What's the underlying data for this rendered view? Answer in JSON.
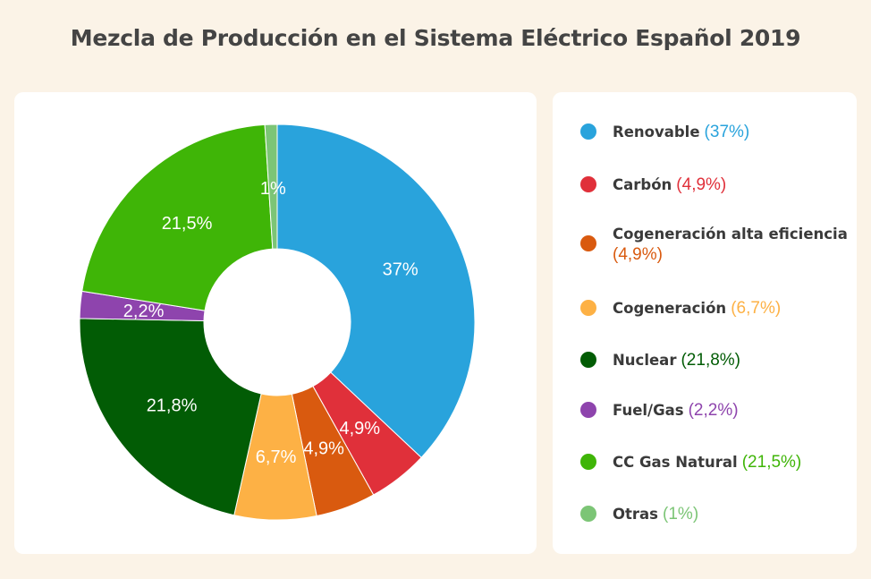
{
  "title": "Mezcla de Producción en el Sistema Eléctrico Español 2019",
  "chart_data": {
    "type": "pie",
    "donut": true,
    "categories": [
      "Renovable",
      "Carbón",
      "Cogeneración alta eficiencia",
      "Cogeneración",
      "Nuclear",
      "Fuel/Gas",
      "CC Gas Natural",
      "Otras"
    ],
    "values": [
      37,
      4.9,
      4.9,
      6.7,
      21.8,
      2.2,
      21.5,
      1
    ],
    "labels": [
      "37%",
      "4,9%",
      "4,9%",
      "6,7%",
      "21,8%",
      "2,2%",
      "21,5%",
      "1%"
    ],
    "colors": [
      "#29a3dc",
      "#e0303a",
      "#d95a0f",
      "#fdb145",
      "#025c05",
      "#8e44ad",
      "#3fb507",
      "#7cc576"
    ],
    "legend_position": "right"
  },
  "legend": [
    {
      "name": "Renovable",
      "pct": "(37%)",
      "color": "#29a3dc"
    },
    {
      "name": "Carbón",
      "pct": "(4,9%)",
      "color": "#e0303a"
    },
    {
      "name": "Cogeneración alta eficiencia",
      "pct": "(4,9%)",
      "color": "#d95a0f"
    },
    {
      "name": "Cogeneración",
      "pct": "(6,7%)",
      "color": "#fdb145"
    },
    {
      "name": "Nuclear",
      "pct": "(21,8%)",
      "color": "#025c05"
    },
    {
      "name": "Fuel/Gas",
      "pct": "(2,2%)",
      "color": "#8e44ad"
    },
    {
      "name": "CC Gas Natural",
      "pct": "(21,5%)",
      "color": "#3fb507"
    },
    {
      "name": "Otras",
      "pct": "(1%)",
      "color": "#7cc576"
    }
  ]
}
